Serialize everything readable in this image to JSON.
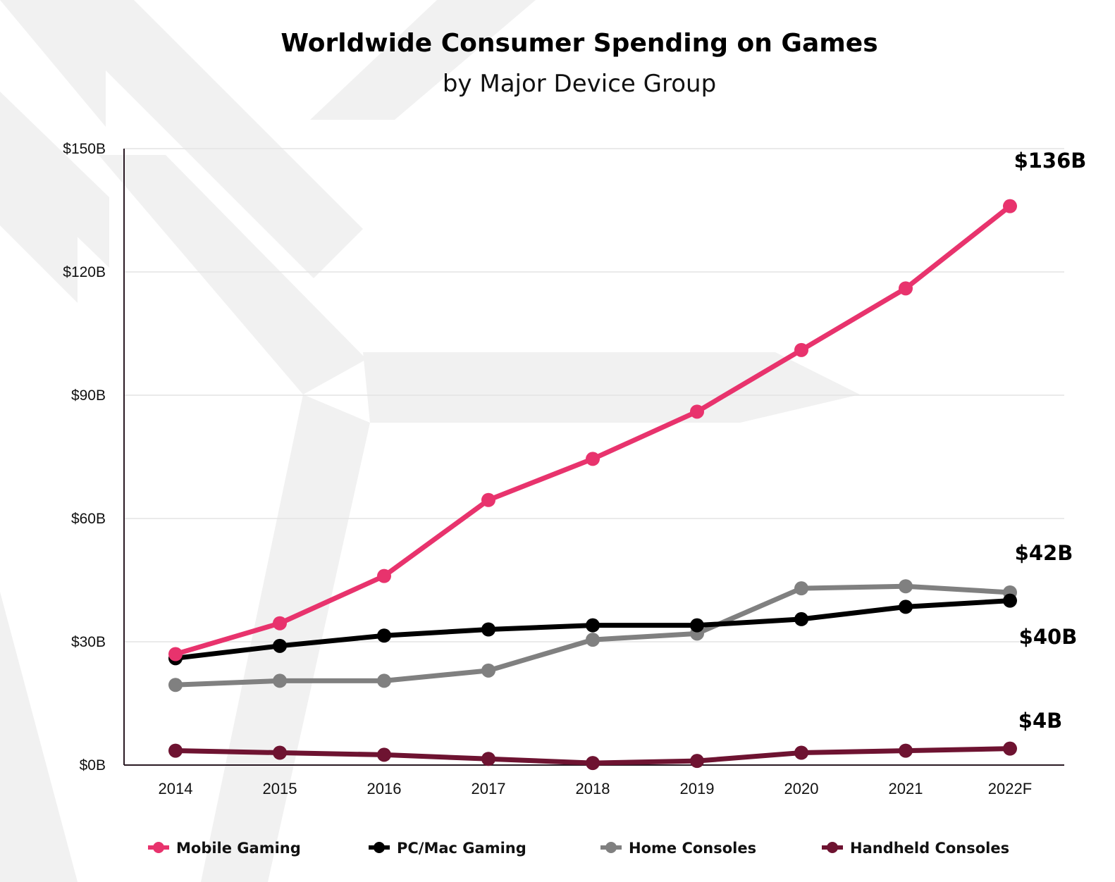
{
  "chart_data": {
    "type": "line",
    "title": "Worldwide Consumer Spending on Games",
    "subtitle": "by Major Device Group",
    "categories": [
      "2014",
      "2015",
      "2016",
      "2017",
      "2018",
      "2019",
      "2020",
      "2021",
      "2022F"
    ],
    "ylim": [
      0,
      150
    ],
    "yticks": [
      0,
      30,
      60,
      90,
      120,
      150
    ],
    "ytick_labels": [
      "$0B",
      "$30B",
      "$60B",
      "$90B",
      "$120B",
      "$150B"
    ],
    "grid": true,
    "legend_position": "bottom",
    "series": [
      {
        "name": "Mobile Gaming",
        "color": "#e8336d",
        "values": [
          27,
          34.5,
          46,
          64.5,
          74.5,
          86,
          101,
          116,
          136
        ],
        "end_label": "$136B"
      },
      {
        "name": "PC/Mac Gaming",
        "color": "#000000",
        "values": [
          26,
          29,
          31.5,
          33,
          34,
          34,
          35.5,
          38.5,
          40
        ],
        "end_label": "$40B"
      },
      {
        "name": "Home Consoles",
        "color": "#808080",
        "values": [
          19.5,
          20.5,
          20.5,
          23,
          30.5,
          32,
          43,
          43.5,
          42
        ],
        "end_label": "$42B"
      },
      {
        "name": "Handheld Consoles",
        "color": "#6e1331",
        "values": [
          3.5,
          3,
          2.5,
          1.5,
          0.5,
          1,
          3,
          3.5,
          4
        ],
        "end_label": "$4B"
      }
    ]
  }
}
